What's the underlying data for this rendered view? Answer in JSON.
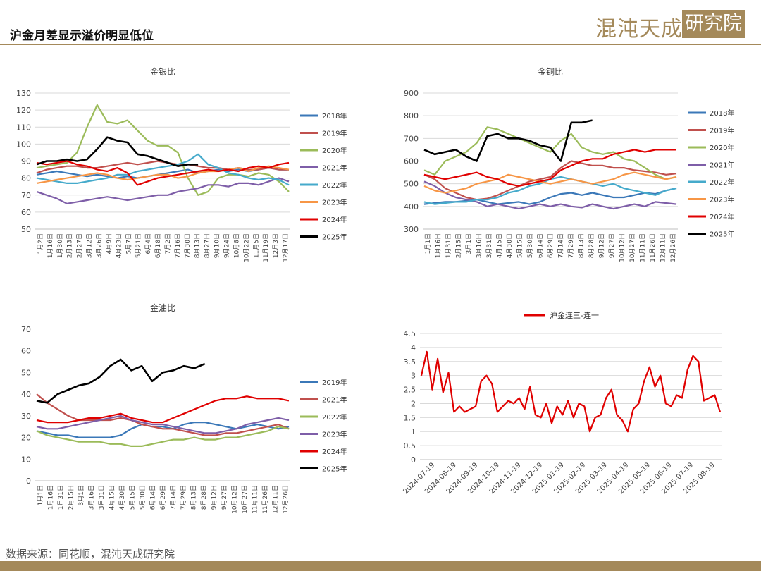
{
  "header": {
    "title": "沪金月差显示溢价明显低位",
    "logo_text": "混沌天成",
    "logo_box_text": "研究院"
  },
  "footer": {
    "source": "数据来源：同花顺，混沌天成研究院"
  },
  "colors": {
    "brand": "#a4895a"
  },
  "chart_data": [
    {
      "type": "line",
      "title": "金银比",
      "x_tick_labels": [
        "1月2日",
        "1月16日",
        "1月30日",
        "2月13日",
        "2月27日",
        "3月12日",
        "3月26日",
        "4月9日",
        "4月23日",
        "5月7日",
        "5月21日",
        "6月4日",
        "6月18日",
        "7月2日",
        "7月16日",
        "7月30日",
        "8月13日",
        "8月27日",
        "9月10日",
        "9月24日",
        "10月8日",
        "10月22日",
        "11月5日",
        "11月19日",
        "12月3日",
        "12月17日"
      ],
      "y_ticks": [
        50,
        60,
        70,
        80,
        90,
        100,
        110,
        120,
        130
      ],
      "ylim": [
        50,
        130
      ],
      "grid": true,
      "legend_position": "right",
      "series": [
        {
          "name": "2018年",
          "color": "#3b78b8",
          "values": [
            82,
            83,
            84,
            83,
            82,
            81,
            82,
            81,
            80,
            81,
            80,
            81,
            82,
            83,
            84,
            85,
            83,
            84,
            85,
            84,
            85,
            84,
            85,
            86,
            85,
            85
          ]
        },
        {
          "name": "2019年",
          "color": "#c0504d",
          "values": [
            83,
            85,
            86,
            87,
            87,
            86,
            86,
            87,
            88,
            89,
            88,
            89,
            90,
            89,
            88,
            88,
            87,
            86,
            86,
            85,
            86,
            85,
            85,
            86,
            85,
            85
          ]
        },
        {
          "name": "2020年",
          "color": "#9bbb59",
          "values": [
            86,
            87,
            88,
            89,
            95,
            110,
            123,
            113,
            112,
            114,
            108,
            102,
            99,
            99,
            95,
            80,
            70,
            72,
            80,
            82,
            82,
            81,
            83,
            82,
            78,
            72
          ]
        },
        {
          "name": "2021年",
          "color": "#7e5ea8",
          "values": [
            72,
            70,
            68,
            65,
            66,
            67,
            68,
            69,
            68,
            67,
            68,
            69,
            70,
            70,
            72,
            73,
            74,
            76,
            76,
            75,
            77,
            77,
            76,
            78,
            80,
            78
          ]
        },
        {
          "name": "2022年",
          "color": "#45aacb",
          "values": [
            80,
            79,
            78,
            77,
            77,
            78,
            79,
            80,
            82,
            82,
            84,
            85,
            86,
            87,
            88,
            90,
            94,
            88,
            86,
            83,
            82,
            80,
            79,
            80,
            79,
            76
          ]
        },
        {
          "name": "2023年",
          "color": "#f79646",
          "values": [
            77,
            78,
            79,
            80,
            81,
            82,
            83,
            82,
            80,
            79,
            80,
            81,
            82,
            82,
            80,
            81,
            83,
            84,
            84,
            85,
            86,
            84,
            86,
            87,
            86,
            85
          ]
        },
        {
          "name": "2024年",
          "color": "#e00000",
          "values": [
            89,
            88,
            89,
            90,
            88,
            87,
            85,
            84,
            86,
            83,
            76,
            78,
            80,
            81,
            82,
            83,
            84,
            85,
            84,
            85,
            84,
            86,
            87,
            86,
            88,
            89
          ]
        },
        {
          "name": "2025年",
          "color": "#000000",
          "values": [
            88,
            90,
            90,
            91,
            90,
            91,
            97,
            104,
            102,
            101,
            94,
            93,
            91,
            89,
            87,
            88,
            88,
            null,
            null,
            null,
            null,
            null,
            null,
            null,
            null,
            null
          ]
        }
      ]
    },
    {
      "type": "line",
      "title": "金铜比",
      "x_tick_labels": [
        "1月1日",
        "1月16日",
        "1月31日",
        "2月15日",
        "3月1日",
        "3月16日",
        "3月31日",
        "4月15日",
        "4月30日",
        "5月15日",
        "5月30日",
        "6月14日",
        "6月29日",
        "7月14日",
        "7月29日",
        "8月13日",
        "8月28日",
        "9月12日",
        "9月27日",
        "10月12日",
        "10月27日",
        "11月11日",
        "11月26日",
        "12月11日",
        "12月26日"
      ],
      "y_ticks": [
        300,
        400,
        500,
        600,
        700,
        800,
        900
      ],
      "ylim": [
        300,
        900
      ],
      "grid": true,
      "legend_position": "right",
      "series": [
        {
          "name": "2018年",
          "color": "#3b78b8",
          "values": [
            410,
            415,
            420,
            420,
            425,
            430,
            420,
            410,
            415,
            420,
            410,
            420,
            440,
            455,
            460,
            450,
            460,
            450,
            440,
            440,
            450,
            460,
            455,
            470,
            480
          ]
        },
        {
          "name": "2019年",
          "color": "#c0504d",
          "values": [
            540,
            520,
            480,
            460,
            440,
            430,
            435,
            450,
            470,
            490,
            510,
            520,
            530,
            570,
            600,
            590,
            580,
            580,
            570,
            570,
            560,
            555,
            550,
            540,
            545
          ]
        },
        {
          "name": "2020年",
          "color": "#9bbb59",
          "values": [
            560,
            540,
            600,
            620,
            640,
            680,
            750,
            740,
            720,
            700,
            680,
            660,
            640,
            690,
            720,
            660,
            640,
            630,
            640,
            610,
            600,
            570,
            540,
            520,
            530
          ]
        },
        {
          "name": "2021年",
          "color": "#7e5ea8",
          "values": [
            510,
            490,
            460,
            440,
            430,
            420,
            400,
            410,
            400,
            390,
            400,
            410,
            400,
            410,
            400,
            395,
            410,
            400,
            390,
            400,
            410,
            400,
            420,
            415,
            410
          ]
        },
        {
          "name": "2022年",
          "color": "#45aacb",
          "values": [
            420,
            410,
            415,
            420,
            420,
            430,
            430,
            440,
            460,
            470,
            490,
            500,
            520,
            530,
            520,
            510,
            500,
            490,
            500,
            480,
            470,
            460,
            450,
            470,
            480
          ]
        },
        {
          "name": "2023年",
          "color": "#f79646",
          "values": [
            490,
            470,
            460,
            470,
            480,
            500,
            510,
            520,
            540,
            530,
            520,
            510,
            500,
            510,
            520,
            510,
            500,
            510,
            520,
            540,
            550,
            540,
            530,
            520,
            530
          ]
        },
        {
          "name": "2024年",
          "color": "#e00000",
          "values": [
            540,
            530,
            520,
            530,
            540,
            550,
            530,
            520,
            500,
            490,
            500,
            510,
            520,
            560,
            580,
            600,
            610,
            610,
            630,
            640,
            650,
            640,
            650,
            650,
            650
          ]
        },
        {
          "name": "2025年",
          "color": "#000000",
          "values": [
            650,
            630,
            640,
            650,
            620,
            600,
            710,
            720,
            700,
            700,
            690,
            670,
            660,
            600,
            770,
            770,
            780,
            null,
            null,
            null,
            null,
            null,
            null,
            null,
            null
          ]
        }
      ]
    },
    {
      "type": "line",
      "title": "金油比",
      "x_tick_labels": [
        "1月1日",
        "1月16日",
        "1月31日",
        "2月15日",
        "3月1日",
        "3月16日",
        "3月31日",
        "4月15日",
        "4月30日",
        "5月15日",
        "5月30日",
        "6月14日",
        "6月29日",
        "7月14日",
        "7月29日",
        "8月13日",
        "8月28日",
        "9月12日",
        "9月27日",
        "10月12日",
        "10月27日",
        "11月11日",
        "11月26日",
        "12月11日",
        "12月26日"
      ],
      "y_ticks": [
        0,
        10,
        20,
        30,
        40,
        50,
        60,
        70
      ],
      "ylim": [
        0,
        70
      ],
      "grid": false,
      "legend_position": "right",
      "series": [
        {
          "name": "2019年",
          "color": "#3b78b8",
          "values": [
            23,
            22,
            21,
            21,
            20,
            20,
            20,
            20,
            21,
            24,
            26,
            25,
            25,
            24,
            26,
            27,
            27,
            26,
            25,
            24,
            25,
            26,
            25,
            24,
            25
          ]
        },
        {
          "name": "2021年",
          "color": "#c0504d",
          "values": [
            40,
            36,
            33,
            30,
            28,
            28,
            28,
            28,
            29,
            28,
            26,
            25,
            24,
            24,
            23,
            22,
            21,
            21,
            22,
            22,
            23,
            24,
            25,
            26,
            24
          ]
        },
        {
          "name": "2022年",
          "color": "#9bbb59",
          "values": [
            23,
            21,
            20,
            19,
            18,
            18,
            18,
            17,
            17,
            16,
            16,
            17,
            18,
            19,
            19,
            20,
            19,
            19,
            20,
            20,
            21,
            22,
            23,
            25,
            24
          ]
        },
        {
          "name": "2023年",
          "color": "#7e5ea8",
          "values": [
            25,
            24,
            24,
            25,
            26,
            27,
            28,
            29,
            30,
            28,
            27,
            26,
            26,
            25,
            24,
            23,
            22,
            22,
            23,
            24,
            26,
            27,
            28,
            29,
            28
          ]
        },
        {
          "name": "2024年",
          "color": "#e00000",
          "values": [
            28,
            27,
            27,
            27,
            28,
            29,
            29,
            30,
            31,
            29,
            28,
            27,
            27,
            29,
            31,
            33,
            35,
            37,
            38,
            38,
            39,
            38,
            38,
            38,
            37
          ]
        },
        {
          "name": "2025年",
          "color": "#000000",
          "values": [
            37,
            36,
            40,
            42,
            44,
            45,
            48,
            53,
            56,
            51,
            53,
            46,
            50,
            51,
            53,
            52,
            54,
            null,
            null,
            null,
            null,
            null,
            null,
            null,
            null
          ]
        }
      ]
    },
    {
      "type": "line",
      "title": "",
      "x_tick_labels": [
        "2024-07-19",
        "2024-08-19",
        "2024-09-19",
        "2024-10-19",
        "2024-11-19",
        "2024-12-19",
        "2025-01-19",
        "2025-02-19",
        "2025-03-19",
        "2025-04-19",
        "2025-05-19",
        "2025-06-19",
        "2025-07-19",
        "2025-08-19"
      ],
      "y_ticks": [
        0,
        0.5,
        1,
        1.5,
        2,
        2.5,
        3,
        3.5,
        4,
        4.5
      ],
      "ylim": [
        0,
        4.5
      ],
      "grid": true,
      "legend_position": "top",
      "series": [
        {
          "name": "沪金连三-连一",
          "color": "#e00000",
          "values": [
            3.0,
            3.85,
            2.5,
            3.6,
            2.4,
            3.1,
            1.7,
            1.9,
            1.7,
            1.8,
            1.9,
            2.8,
            3.0,
            2.7,
            1.7,
            1.9,
            2.1,
            2.0,
            2.2,
            1.8,
            2.6,
            1.6,
            1.5,
            2.0,
            1.3,
            1.9,
            1.6,
            2.1,
            1.5,
            2.0,
            1.9,
            1.0,
            1.5,
            1.6,
            2.2,
            2.5,
            1.6,
            1.4,
            1.0,
            1.8,
            2.0,
            2.8,
            3.3,
            2.6,
            3.0,
            2.0,
            1.9,
            2.3,
            2.2,
            3.2,
            3.7,
            3.5,
            2.1,
            2.2,
            2.3,
            1.7
          ]
        }
      ]
    }
  ]
}
